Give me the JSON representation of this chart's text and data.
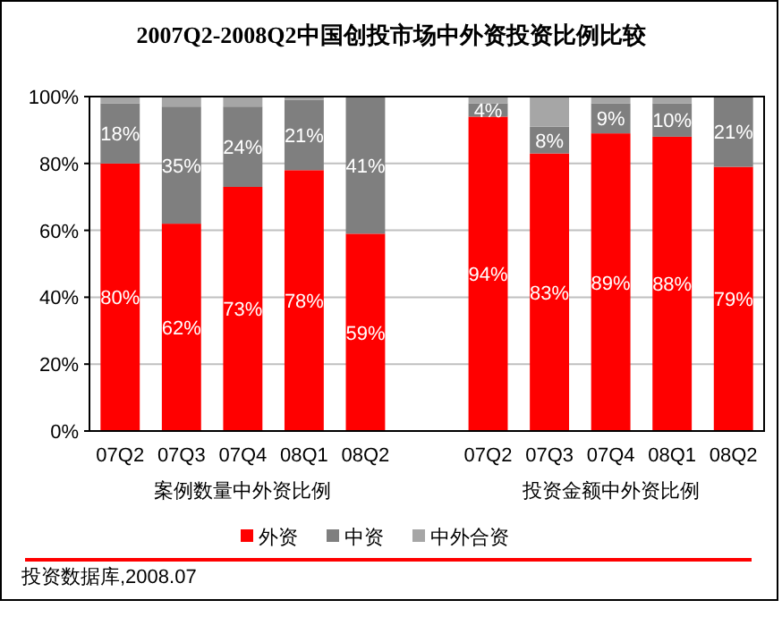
{
  "chart_data": {
    "type": "bar",
    "title": "2007Q2-2008Q2中国创投市场中外资投资比例比较",
    "categories": [
      "07Q2",
      "07Q3",
      "07Q4",
      "08Q1",
      "08Q2",
      null,
      "07Q2",
      "07Q3",
      "07Q4",
      "08Q1",
      "08Q2"
    ],
    "stacked": true,
    "series": [
      {
        "name": "外资",
        "color": "#ff0000",
        "values": [
          80,
          62,
          73,
          78,
          59,
          null,
          94,
          83,
          89,
          88,
          79
        ],
        "value_labels": [
          "80%",
          "62%",
          "73%",
          "78%",
          "59%",
          null,
          "94%",
          "83%",
          "89%",
          "88%",
          "79%"
        ]
      },
      {
        "name": "中资",
        "color": "#7f7f7f",
        "values": [
          18,
          35,
          24,
          21,
          41,
          null,
          4,
          8,
          9,
          10,
          21
        ],
        "value_labels": [
          "18%",
          "35%",
          "24%",
          "21%",
          "41%",
          null,
          "4%",
          "8%",
          "9%",
          "10%",
          "21%"
        ]
      },
      {
        "name": "中外合资",
        "color": "#a6a6a6",
        "values": [
          2,
          3,
          3,
          1,
          0,
          null,
          2,
          9,
          2,
          2,
          0
        ]
      }
    ],
    "ylim": [
      0,
      100
    ],
    "yticks": [
      {
        "value": 0,
        "label": "0%"
      },
      {
        "value": 20,
        "label": "20%"
      },
      {
        "value": 40,
        "label": "40%"
      },
      {
        "value": 60,
        "label": "60%"
      },
      {
        "value": 80,
        "label": "80%"
      },
      {
        "value": 100,
        "label": "100%"
      }
    ],
    "grid": "y",
    "legend": "bottom",
    "annotations": [
      "案例数量中外资比例",
      "投资金额中外资比例",
      "投资数据库,2008.07"
    ]
  }
}
